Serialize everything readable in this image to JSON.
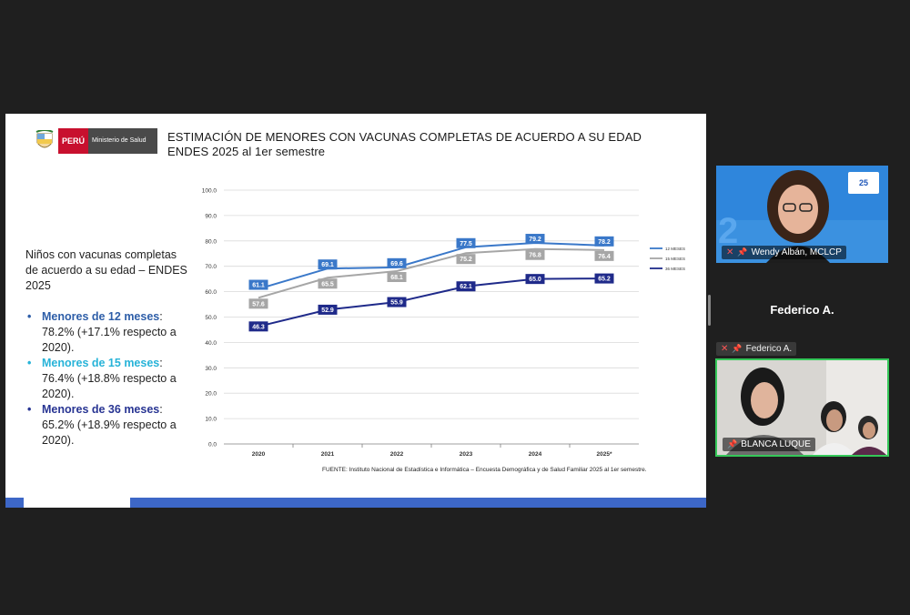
{
  "slide": {
    "title_line1": "ESTIMACIÓN DE MENORES CON VACUNAS COMPLETAS DE ACUERDO A SU EDAD",
    "title_line2": "ENDES 2025 al 1er semestre",
    "logo": {
      "peru": "PERÚ",
      "ministry": "Ministerio de Salud"
    },
    "intro": "Niños con vacunas completas de acuerdo a su edad – ENDES 2025",
    "bullets": [
      {
        "label": "Menores de 12 meses",
        "text": ": 78.2% (+17.1% respecto a 2020).",
        "color": "#2e5ea8"
      },
      {
        "label": "Menores de 15 meses",
        "text": ": 76.4% (+18.8% respecto a 2020).",
        "color": "#27b3d8"
      },
      {
        "label": "Menores de 36 meses",
        "text": ": 65.2% (+18.9% respecto a 2020).",
        "color": "#283593"
      }
    ],
    "source": "FUENTE: Instituto Nacional de Estadística e Informática – Encuesta Demográfica y de Salud Familiar 2025 al 1er semestre."
  },
  "chart_data": {
    "type": "line",
    "categories": [
      "2020",
      "2021",
      "2022",
      "2023",
      "2024",
      "2025*"
    ],
    "ylim": [
      0,
      100
    ],
    "yticks": [
      "0.0",
      "10.0",
      "20.0",
      "30.0",
      "40.0",
      "50.0",
      "60.0",
      "70.0",
      "80.0",
      "90.0",
      "100.0"
    ],
    "grid": true,
    "legend_position": "right",
    "series": [
      {
        "name": "12 MESES",
        "values": [
          61.1,
          69.1,
          69.6,
          77.5,
          79.2,
          78.2
        ],
        "color": "#3a78c9"
      },
      {
        "name": "15 MESES",
        "values": [
          57.6,
          65.5,
          68.1,
          75.2,
          76.8,
          76.4
        ],
        "color": "#a6a6a6"
      },
      {
        "name": "36 MESES",
        "values": [
          46.3,
          52.9,
          55.9,
          62.1,
          65.0,
          65.2
        ],
        "color": "#1f2a8a"
      }
    ],
    "labels": [
      [
        "61.1",
        "69.1",
        "69.6",
        "77.5",
        "79.2",
        "78.2"
      ],
      [
        "57.6",
        "65.5",
        "68.1",
        "75.2",
        "76.8",
        "76.4"
      ],
      [
        "46.3",
        "52.9",
        "55.9",
        "62.1",
        "65.0",
        "65.2"
      ]
    ]
  },
  "participants": {
    "wendy": {
      "name": "Wendy Albán, MCLCP",
      "badge": "25"
    },
    "federico": {
      "name_big": "Federico A.",
      "name_label": "Federico A."
    },
    "blanca": {
      "name": "BLANCA LUQUE"
    }
  }
}
